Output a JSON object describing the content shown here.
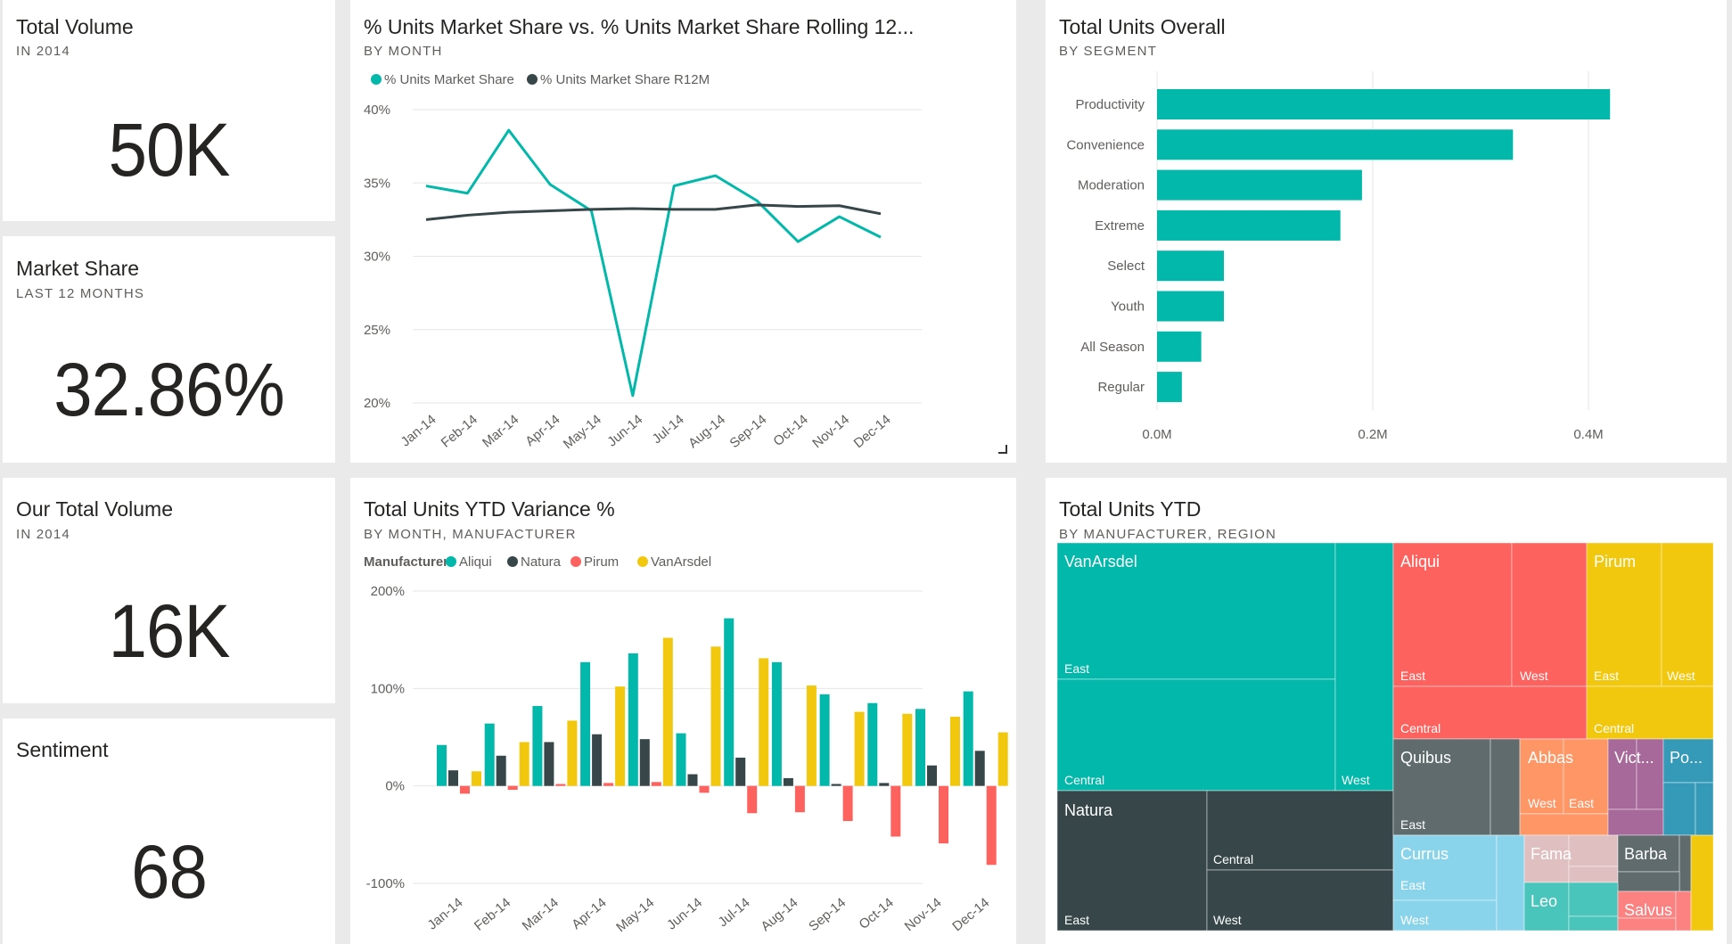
{
  "kpis": {
    "total_volume": {
      "title": "Total Volume",
      "subtitle": "IN 2014",
      "value": "50K"
    },
    "market_share": {
      "title": "Market Share",
      "subtitle": "LAST 12 MONTHS",
      "value": "32.86%"
    },
    "our_total_volume": {
      "title": "Our Total Volume",
      "subtitle": "IN 2014",
      "value": "16K"
    },
    "sentiment": {
      "title": "Sentiment",
      "subtitle": "",
      "value": "68"
    }
  },
  "colors": {
    "teal": "#01B8AA",
    "dark": "#374649",
    "red": "#FD625E",
    "yellow": "#F2C80F",
    "gray": "#5F6B6D",
    "light_blue": "#8AD4EB",
    "orange": "#FE9666",
    "purple": "#A66999",
    "blue": "#3599B8",
    "pink": "#DFBFBF",
    "teal2": "#4AC5BB",
    "gray2": "#5F6B6D",
    "red2": "#FB8281"
  },
  "chart_data": [
    {
      "type": "line",
      "title": "% Units Market Share vs. % Units Market Share Rolling 12...",
      "subtitle": "BY MONTH",
      "categories": [
        "Jan-14",
        "Feb-14",
        "Mar-14",
        "Apr-14",
        "May-14",
        "Jun-14",
        "Jul-14",
        "Aug-14",
        "Sep-14",
        "Oct-14",
        "Nov-14",
        "Dec-14"
      ],
      "y_ticks": [
        "40%",
        "35%",
        "30%",
        "25%",
        "20%"
      ],
      "ylim": [
        20,
        40
      ],
      "legend_position": "top-left",
      "grid": true,
      "series": [
        {
          "name": "% Units Market Share",
          "color": "#01B8AA",
          "values": [
            34.8,
            34.3,
            38.6,
            34.9,
            33.1,
            20.5,
            34.8,
            35.5,
            33.8,
            31.0,
            32.7,
            31.3
          ]
        },
        {
          "name": "% Units Market Share R12M",
          "color": "#374649",
          "values": [
            32.5,
            32.8,
            33.0,
            33.1,
            33.2,
            33.25,
            33.2,
            33.2,
            33.5,
            33.4,
            33.45,
            32.9
          ]
        }
      ]
    },
    {
      "type": "bar",
      "orientation": "horizontal",
      "title": "Total Units Overall",
      "subtitle": "BY SEGMENT",
      "categories": [
        "Productivity",
        "Convenience",
        "Moderation",
        "Extreme",
        "Select",
        "Youth",
        "All Season",
        "Regular"
      ],
      "values": [
        0.42,
        0.33,
        0.19,
        0.17,
        0.062,
        0.062,
        0.041,
        0.023
      ],
      "x_ticks": [
        "0.0M",
        "0.2M",
        "0.4M"
      ],
      "xlim": [
        0,
        0.5
      ],
      "grid": true,
      "color": "#01B8AA"
    },
    {
      "type": "bar",
      "title": "Total Units YTD Variance %",
      "subtitle": "BY MONTH, MANUFACTURER",
      "legend_title": "Manufacturer",
      "legend_position": "top-left",
      "categories": [
        "Jan-14",
        "Feb-14",
        "Mar-14",
        "Apr-14",
        "May-14",
        "Jun-14",
        "Jul-14",
        "Aug-14",
        "Sep-14",
        "Oct-14",
        "Nov-14",
        "Dec-14"
      ],
      "y_ticks": [
        "200%",
        "100%",
        "0%",
        "-100%"
      ],
      "ylim": [
        -100,
        200
      ],
      "grid": true,
      "series": [
        {
          "name": "Aliqui",
          "color": "#01B8AA",
          "values": [
            42,
            64,
            82,
            127,
            136,
            54,
            172,
            127,
            94,
            85,
            79,
            97
          ]
        },
        {
          "name": "Natura",
          "color": "#374649",
          "values": [
            16,
            31,
            45,
            53,
            48,
            12,
            29,
            8,
            2,
            3,
            21,
            36
          ]
        },
        {
          "name": "Pirum",
          "color": "#FD625E",
          "values": [
            -8,
            -4,
            2,
            3,
            4,
            -7,
            -28,
            -27,
            -36,
            -52,
            -59,
            -81
          ]
        },
        {
          "name": "VanArsdel",
          "color": "#F2C80F",
          "values": [
            15,
            45,
            67,
            102,
            152,
            143,
            131,
            103,
            76,
            74,
            71,
            55
          ]
        }
      ]
    },
    {
      "type": "treemap",
      "title": "Total Units YTD",
      "subtitle": "BY MANUFACTURER, REGION",
      "groups": [
        {
          "name": "VanArsdel",
          "color": "#01B8AA",
          "regions": [
            "East",
            "Central",
            "West"
          ]
        },
        {
          "name": "Aliqui",
          "color": "#FD625E",
          "regions": [
            "East",
            "West",
            "Central"
          ]
        },
        {
          "name": "Pirum",
          "color": "#F2C80F",
          "regions": [
            "East",
            "West",
            "Central"
          ]
        },
        {
          "name": "Natura",
          "color": "#374649",
          "regions": [
            "Central",
            "East",
            "West"
          ]
        },
        {
          "name": "Quibus",
          "color": "#5F6B6D",
          "regions": [
            "East"
          ]
        },
        {
          "name": "Abbas",
          "color": "#FE9666",
          "regions": [
            "West",
            "East"
          ]
        },
        {
          "name": "Vict...",
          "color": "#A66999",
          "regions": []
        },
        {
          "name": "Po...",
          "color": "#3599B8",
          "regions": []
        },
        {
          "name": "Currus",
          "color": "#8AD4EB",
          "regions": [
            "East",
            "West"
          ]
        },
        {
          "name": "Fama",
          "color": "#DFBFBF",
          "regions": []
        },
        {
          "name": "Barba",
          "color": "#5F6B6D",
          "regions": []
        },
        {
          "name": "Leo",
          "color": "#4AC5BB",
          "regions": []
        },
        {
          "name": "Salvus",
          "color": "#FB8281",
          "regions": []
        }
      ]
    }
  ]
}
